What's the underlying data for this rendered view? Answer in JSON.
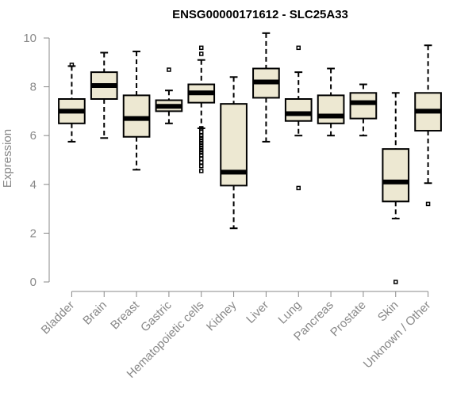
{
  "chart_data": {
    "type": "boxplot",
    "title": "ENSG00000171612 - SLC25A33",
    "xlabel": "",
    "ylabel": "Expression",
    "ylim": [
      0,
      10
    ],
    "yticks": [
      0,
      2,
      4,
      6,
      8,
      10
    ],
    "box_color": "#ede8d2",
    "series": [
      {
        "name": "Bladder",
        "min": 5.75,
        "q1": 6.5,
        "median": 7.0,
        "q3": 7.5,
        "max": 8.85,
        "outliers": [
          8.9
        ]
      },
      {
        "name": "Brain",
        "min": 5.9,
        "q1": 7.5,
        "median": 8.05,
        "q3": 8.6,
        "max": 9.4,
        "outliers": []
      },
      {
        "name": "Breast",
        "min": 4.6,
        "q1": 5.95,
        "median": 6.7,
        "q3": 7.65,
        "max": 9.45,
        "outliers": []
      },
      {
        "name": "Gastric",
        "min": 6.5,
        "q1": 7.0,
        "median": 7.2,
        "q3": 7.45,
        "max": 7.85,
        "outliers": [
          8.7
        ]
      },
      {
        "name": "Hematopoietic cells",
        "min": 6.3,
        "q1": 7.35,
        "median": 7.75,
        "q3": 8.1,
        "max": 9.1,
        "outliers": [
          9.6,
          9.35,
          6.3,
          6.15,
          6.0,
          5.9,
          5.8,
          5.7,
          5.6,
          5.5,
          5.4,
          5.3,
          5.2,
          5.05,
          4.9,
          4.75,
          4.55
        ]
      },
      {
        "name": "Kidney",
        "min": 2.2,
        "q1": 3.95,
        "median": 4.5,
        "q3": 7.3,
        "max": 8.4,
        "outliers": []
      },
      {
        "name": "Liver",
        "min": 5.75,
        "q1": 7.55,
        "median": 8.2,
        "q3": 8.75,
        "max": 10.2,
        "outliers": []
      },
      {
        "name": "Lung",
        "min": 6.0,
        "q1": 6.6,
        "median": 6.9,
        "q3": 7.5,
        "max": 8.6,
        "outliers": [
          9.6,
          3.85
        ]
      },
      {
        "name": "Pancreas",
        "min": 6.0,
        "q1": 6.5,
        "median": 6.8,
        "q3": 7.65,
        "max": 8.75,
        "outliers": []
      },
      {
        "name": "Prostate",
        "min": 6.0,
        "q1": 6.7,
        "median": 7.35,
        "q3": 7.75,
        "max": 8.1,
        "outliers": []
      },
      {
        "name": "Skin",
        "min": 2.6,
        "q1": 3.3,
        "median": 4.1,
        "q3": 5.45,
        "max": 7.75,
        "outliers": [
          0.0
        ]
      },
      {
        "name": "Unknown / Other",
        "min": 4.05,
        "q1": 6.2,
        "median": 7.0,
        "q3": 7.75,
        "max": 9.7,
        "outliers": [
          3.2
        ]
      }
    ]
  }
}
